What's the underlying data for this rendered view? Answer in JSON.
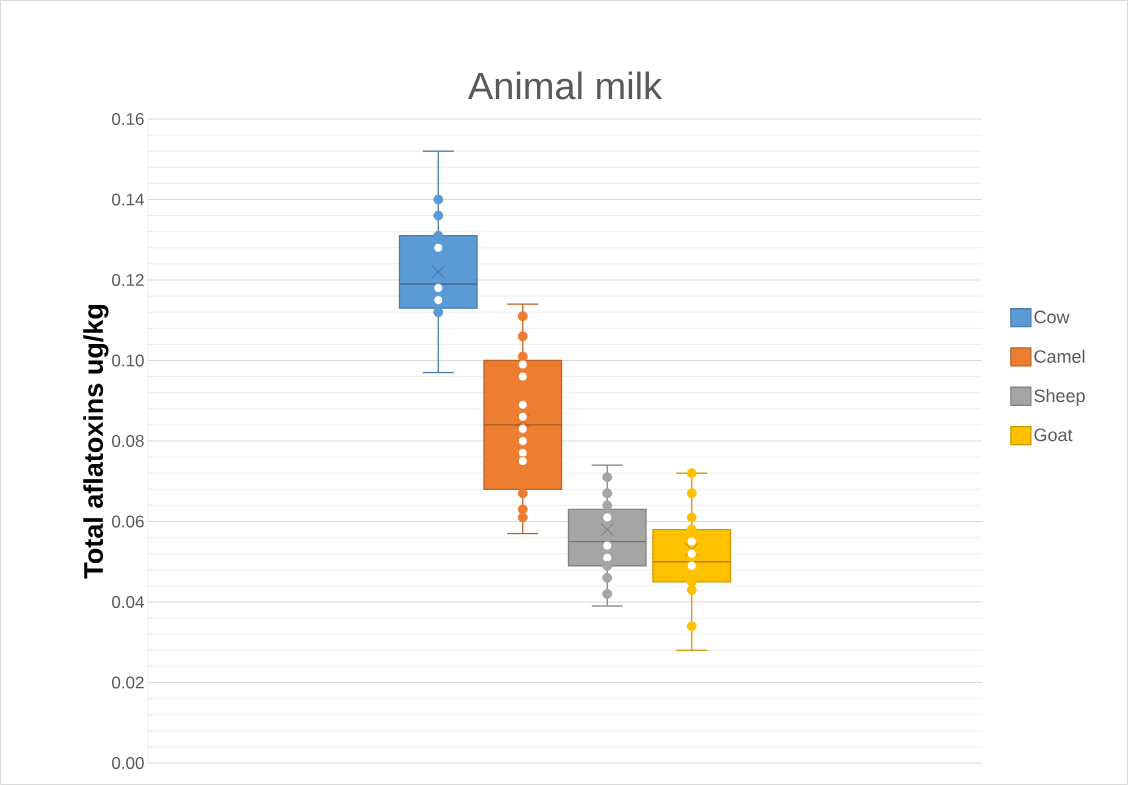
{
  "chart_data": {
    "type": "box",
    "title": "Animal milk",
    "ylabel": "Total aflatoxins ug/kg",
    "categories": [
      null
    ],
    "ylim": [
      0,
      0.16
    ],
    "yticks": [
      {
        "value": 0,
        "label": "0.00"
      },
      {
        "value": 0.02,
        "label": "0.02"
      },
      {
        "value": 0.04,
        "label": "0.04"
      },
      {
        "value": 0.06,
        "label": "0.06"
      },
      {
        "value": 0.08,
        "label": "0.08"
      },
      {
        "value": 0.1,
        "label": "0.10"
      },
      {
        "value": 0.12,
        "label": "0.12"
      },
      {
        "value": 0.14,
        "label": "0.14"
      },
      {
        "value": 0.16,
        "label": "0.16"
      }
    ],
    "grid": "y",
    "legend": "right",
    "tick_labels": "y",
    "series": [
      {
        "type": "box",
        "name": "Cow",
        "color": "#5b9bd5",
        "boxes": [
          {
            "low": 0.097,
            "q1": 0.113,
            "median": 0.119,
            "q3": 0.131,
            "high": 0.152,
            "mean": 0.122
          }
        ]
      },
      {
        "type": "box",
        "name": "Camel",
        "color": "#ed7d31",
        "boxes": [
          {
            "low": 0.057,
            "q1": 0.068,
            "median": 0.084,
            "q3": 0.1,
            "high": 0.114,
            "mean": 0.085
          }
        ]
      },
      {
        "type": "box",
        "name": "Sheep",
        "color": "#a5a5a5",
        "boxes": [
          {
            "low": 0.039,
            "q1": 0.049,
            "median": 0.055,
            "q3": 0.063,
            "high": 0.074,
            "mean": 0.058
          }
        ]
      },
      {
        "type": "box",
        "name": "Goat",
        "color": "#ffc000",
        "boxes": [
          {
            "low": 0.028,
            "q1": 0.045,
            "median": 0.05,
            "q3": 0.058,
            "high": 0.072,
            "mean": 0.053
          }
        ]
      },
      {
        "type": "scatter",
        "color": "#5b9bd5",
        "x": [
          null,
          null,
          null,
          null,
          null,
          null,
          null
        ],
        "values": [
          0.14,
          0.136,
          0.131,
          0.128,
          0.118,
          0.115,
          0.112
        ]
      },
      {
        "type": "scatter",
        "color": "#ed7d31",
        "x": [
          null,
          null,
          null,
          null,
          null,
          null,
          null,
          null,
          null,
          null,
          null,
          null,
          null,
          null
        ],
        "values": [
          0.111,
          0.106,
          0.101,
          0.099,
          0.096,
          0.089,
          0.086,
          0.083,
          0.08,
          0.077,
          0.075,
          0.067,
          0.063,
          0.061
        ]
      },
      {
        "type": "scatter",
        "color": "#a5a5a5",
        "x": [
          null,
          null,
          null,
          null,
          null,
          null,
          null,
          null,
          null
        ],
        "values": [
          0.071,
          0.067,
          0.064,
          0.061,
          0.054,
          0.051,
          0.049,
          0.046,
          0.042
        ]
      },
      {
        "type": "scatter",
        "color": "#ffc000",
        "x": [
          null,
          null,
          null,
          null,
          null,
          null,
          null,
          null,
          null,
          null
        ],
        "values": [
          0.072,
          0.067,
          0.061,
          0.058,
          0.055,
          0.052,
          0.049,
          0.045,
          0.043,
          0.034
        ]
      }
    ]
  }
}
